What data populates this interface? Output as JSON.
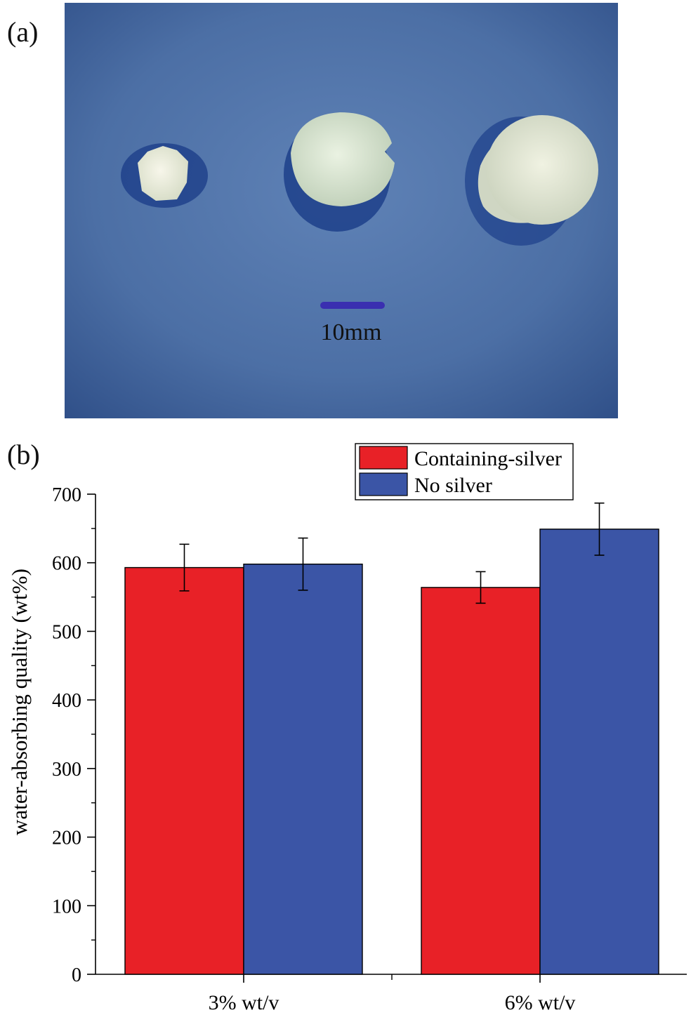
{
  "panels": {
    "a_label": "(a)",
    "b_label": "(b)"
  },
  "photo": {
    "scale_bar_label": "10mm",
    "colors": {
      "background": "#4a6da3",
      "scale_bar": "#3a2fb0",
      "sample": "#e8ecdc"
    }
  },
  "chart_data": {
    "type": "bar",
    "categories": [
      "3% wt/v",
      "6% wt/v"
    ],
    "series": [
      {
        "name": "Containing-silver",
        "color": "#e82127",
        "values": [
          593,
          564
        ],
        "errors": [
          34,
          23
        ]
      },
      {
        "name": "No silver",
        "color": "#3b55a6",
        "values": [
          598,
          649
        ],
        "errors": [
          38,
          38
        ]
      }
    ],
    "ylabel": "water-absorbing quality (wt%)",
    "xlabel": "",
    "ylim": [
      0,
      700
    ],
    "yticks": [
      0,
      100,
      200,
      300,
      400,
      500,
      600,
      700
    ],
    "legend_position": "top-right"
  }
}
